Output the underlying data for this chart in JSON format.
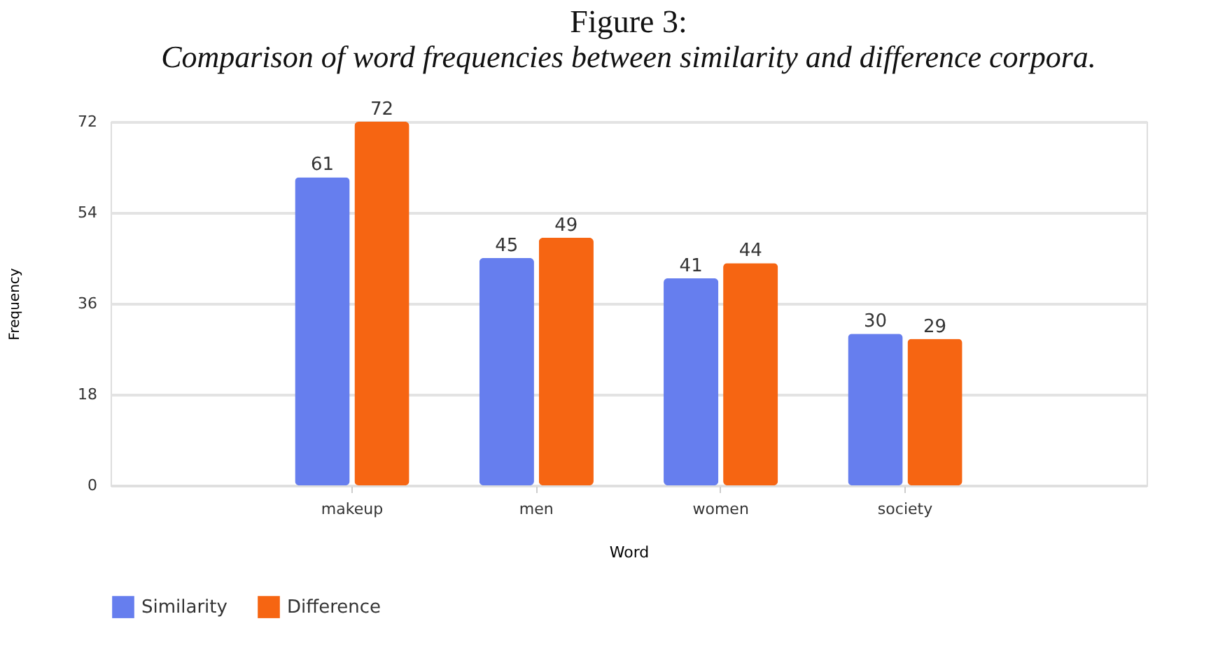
{
  "chart_data": {
    "type": "bar",
    "title": "Figure 3:",
    "subtitle": "Comparison of word frequencies between similarity and difference corpora.",
    "xlabel": "Word",
    "ylabel": "Frequency",
    "categories": [
      "makeup",
      "men",
      "women",
      "society"
    ],
    "series": [
      {
        "name": "Similarity",
        "color": "#667eee",
        "values": [
          61,
          45,
          41,
          30
        ]
      },
      {
        "name": "Difference",
        "color": "#f66512",
        "values": [
          72,
          49,
          44,
          29
        ]
      }
    ],
    "ylim": [
      0,
      72
    ],
    "yticks": [
      0,
      18,
      36,
      54,
      72
    ],
    "grid": "y",
    "legend": "bottom left",
    "data_labels": true
  }
}
